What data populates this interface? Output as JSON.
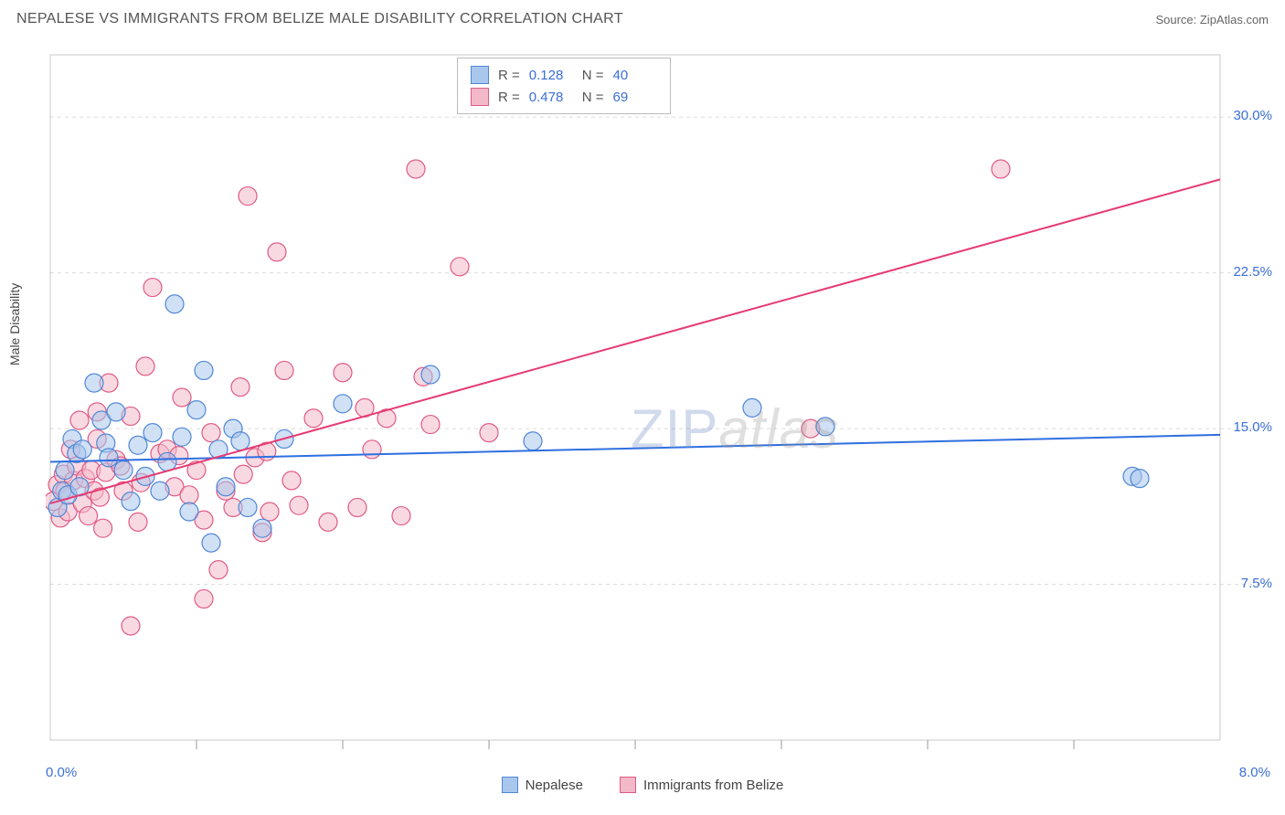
{
  "title": "NEPALESE VS IMMIGRANTS FROM BELIZE MALE DISABILITY CORRELATION CHART",
  "source": "Source: ZipAtlas.com",
  "chart": {
    "type": "scatter",
    "ylabel": "Male Disability",
    "xlim": [
      0.0,
      8.0
    ],
    "ylim": [
      0.0,
      33.0
    ],
    "xtick_major": [
      0.0,
      8.0
    ],
    "xtick_labels": [
      "0.0%",
      "8.0%"
    ],
    "xtick_minor_step": 1.0,
    "ytick_major": [
      7.5,
      15.0,
      22.5,
      30.0
    ],
    "ytick_labels": [
      "7.5%",
      "15.0%",
      "22.5%",
      "30.0%"
    ],
    "grid_color": "#dcdcdc",
    "grid_dash": "4,4",
    "background_color": "#ffffff",
    "axis_color": "#c8c8c8",
    "tick_color": "#999999",
    "watermark": {
      "zip": "ZIP",
      "atlas": "atlas"
    },
    "series": [
      {
        "name": "Nepalese",
        "fill_color": "#a9c7ec",
        "stroke_color": "#4f87d6",
        "marker_radius": 10,
        "fill_opacity": 0.55,
        "trend": {
          "x1": 0.0,
          "y1": 13.4,
          "x2": 8.0,
          "y2": 14.7,
          "color": "#2e6fe0",
          "width": 2
        },
        "stats": {
          "R": "0.128",
          "N": "40"
        },
        "points": [
          [
            0.05,
            11.2
          ],
          [
            0.08,
            12.0
          ],
          [
            0.1,
            13.0
          ],
          [
            0.12,
            11.8
          ],
          [
            0.15,
            14.5
          ],
          [
            0.18,
            13.8
          ],
          [
            0.2,
            12.2
          ],
          [
            0.22,
            14.0
          ],
          [
            0.3,
            17.2
          ],
          [
            0.35,
            15.4
          ],
          [
            0.38,
            14.3
          ],
          [
            0.4,
            13.6
          ],
          [
            0.45,
            15.8
          ],
          [
            0.5,
            13.0
          ],
          [
            0.55,
            11.5
          ],
          [
            0.6,
            14.2
          ],
          [
            0.65,
            12.7
          ],
          [
            0.7,
            14.8
          ],
          [
            0.75,
            12.0
          ],
          [
            0.8,
            13.4
          ],
          [
            0.85,
            21.0
          ],
          [
            0.9,
            14.6
          ],
          [
            0.95,
            11.0
          ],
          [
            1.0,
            15.9
          ],
          [
            1.05,
            17.8
          ],
          [
            1.1,
            9.5
          ],
          [
            1.15,
            14.0
          ],
          [
            1.2,
            12.2
          ],
          [
            1.25,
            15.0
          ],
          [
            1.3,
            14.4
          ],
          [
            1.35,
            11.2
          ],
          [
            1.45,
            10.2
          ],
          [
            1.6,
            14.5
          ],
          [
            2.0,
            16.2
          ],
          [
            2.6,
            17.6
          ],
          [
            3.3,
            14.4
          ],
          [
            4.8,
            16.0
          ],
          [
            5.3,
            15.1
          ],
          [
            7.4,
            12.7
          ],
          [
            7.45,
            12.6
          ]
        ]
      },
      {
        "name": "Immigrants from Belize",
        "fill_color": "#f4b9c8",
        "stroke_color": "#e05a85",
        "marker_radius": 10,
        "fill_opacity": 0.55,
        "trend": {
          "x1": 0.0,
          "y1": 11.4,
          "x2": 8.0,
          "y2": 27.0,
          "color": "#e63b73",
          "width": 2
        },
        "stats": {
          "R": "0.478",
          "N": "69"
        },
        "points": [
          [
            0.02,
            11.5
          ],
          [
            0.05,
            12.3
          ],
          [
            0.07,
            10.7
          ],
          [
            0.09,
            12.8
          ],
          [
            0.1,
            12.0
          ],
          [
            0.12,
            11.0
          ],
          [
            0.14,
            14.0
          ],
          [
            0.16,
            12.5
          ],
          [
            0.18,
            13.2
          ],
          [
            0.2,
            15.4
          ],
          [
            0.22,
            11.4
          ],
          [
            0.24,
            12.6
          ],
          [
            0.26,
            10.8
          ],
          [
            0.28,
            13.0
          ],
          [
            0.3,
            12.0
          ],
          [
            0.32,
            14.5
          ],
          [
            0.34,
            11.7
          ],
          [
            0.36,
            10.2
          ],
          [
            0.38,
            12.9
          ],
          [
            0.4,
            17.2
          ],
          [
            0.45,
            13.5
          ],
          [
            0.5,
            12.0
          ],
          [
            0.55,
            15.6
          ],
          [
            0.6,
            10.5
          ],
          [
            0.65,
            18.0
          ],
          [
            0.7,
            21.8
          ],
          [
            0.75,
            13.8
          ],
          [
            0.55,
            5.5
          ],
          [
            0.8,
            14.0
          ],
          [
            0.85,
            12.2
          ],
          [
            0.9,
            16.5
          ],
          [
            0.95,
            11.8
          ],
          [
            1.0,
            13.0
          ],
          [
            1.05,
            10.6
          ],
          [
            1.1,
            14.8
          ],
          [
            1.15,
            8.2
          ],
          [
            1.2,
            12.0
          ],
          [
            1.25,
            11.2
          ],
          [
            1.3,
            17.0
          ],
          [
            1.35,
            26.2
          ],
          [
            1.4,
            13.6
          ],
          [
            1.45,
            10.0
          ],
          [
            1.5,
            11.0
          ],
          [
            1.55,
            23.5
          ],
          [
            1.6,
            17.8
          ],
          [
            1.65,
            12.5
          ],
          [
            1.7,
            11.3
          ],
          [
            1.8,
            15.5
          ],
          [
            1.9,
            10.5
          ],
          [
            2.0,
            17.7
          ],
          [
            2.1,
            11.2
          ],
          [
            2.2,
            14.0
          ],
          [
            2.3,
            15.5
          ],
          [
            2.4,
            10.8
          ],
          [
            2.5,
            27.5
          ],
          [
            2.55,
            17.5
          ],
          [
            2.6,
            15.2
          ],
          [
            2.8,
            22.8
          ],
          [
            3.0,
            14.8
          ],
          [
            5.2,
            15.0
          ],
          [
            6.5,
            27.5
          ],
          [
            1.05,
            6.8
          ],
          [
            0.32,
            15.8
          ],
          [
            0.48,
            13.2
          ],
          [
            0.62,
            12.4
          ],
          [
            0.88,
            13.7
          ],
          [
            1.32,
            12.8
          ],
          [
            1.48,
            13.9
          ],
          [
            2.15,
            16.0
          ]
        ]
      }
    ],
    "legend_bottom": [
      {
        "label": "Nepalese",
        "fill": "#a9c7ec",
        "stroke": "#4f87d6"
      },
      {
        "label": "Immigrants from Belize",
        "fill": "#f4b9c8",
        "stroke": "#e05a85"
      }
    ]
  }
}
